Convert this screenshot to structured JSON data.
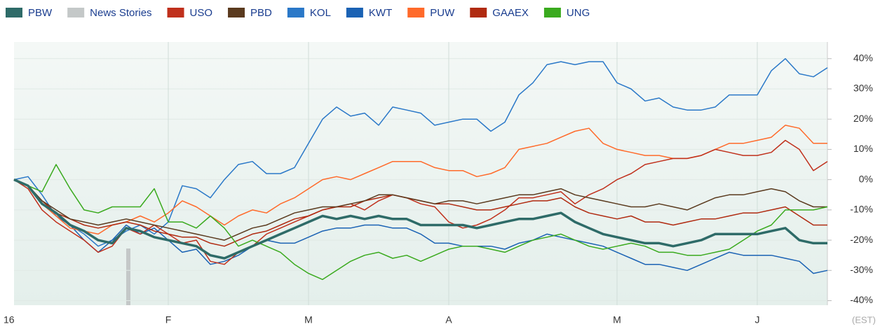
{
  "chart_data": {
    "type": "line",
    "categories": [
      "16",
      null,
      null,
      null,
      null,
      null,
      null,
      null,
      null,
      null,
      null,
      "F",
      null,
      null,
      null,
      null,
      null,
      null,
      null,
      null,
      null,
      "M",
      null,
      null,
      null,
      null,
      null,
      null,
      null,
      null,
      null,
      "A",
      null,
      null,
      null,
      null,
      null,
      null,
      null,
      null,
      null,
      null,
      null,
      "M",
      null,
      null,
      null,
      null,
      null,
      null,
      null,
      null,
      null,
      "J",
      null,
      null,
      null,
      null,
      null
    ],
    "x_note_label": "(EST)",
    "ylim": [
      -41.5,
      45.5
    ],
    "yticks": [
      {
        "value": 40,
        "label": "40%"
      },
      {
        "value": 30,
        "label": "30%"
      },
      {
        "value": 20,
        "label": "20%"
      },
      {
        "value": 10,
        "label": "10%"
      },
      {
        "value": 0,
        "label": "0%"
      },
      {
        "value": -10,
        "label": "-10%"
      },
      {
        "value": -20,
        "label": "-20%"
      },
      {
        "value": -30,
        "label": "-30%"
      },
      {
        "value": -40,
        "label": "-40%"
      }
    ],
    "grid": true,
    "legend_items": [
      {
        "name": "News Stories",
        "color": "#c4c8c8"
      }
    ],
    "series": [
      {
        "name": "PBW",
        "color": "#2e6b68",
        "values": [
          0,
          -2,
          -8,
          -11,
          -15,
          -17,
          -20,
          -21,
          -16,
          -17,
          -19,
          -20,
          -21,
          -22,
          -25,
          -26,
          -24,
          -22,
          -20,
          -18,
          -16,
          -14,
          -12,
          -13,
          -12,
          -13,
          -12,
          -13,
          -13,
          -15,
          -15,
          -15,
          -15,
          -16,
          -15,
          -14,
          -13,
          -13,
          -12,
          -11,
          -14,
          -16,
          -18,
          -19,
          -20,
          -21,
          -21,
          -22,
          -21,
          -20,
          -18,
          -18,
          -18,
          -18,
          -17,
          -16,
          -20,
          -21,
          -21
        ]
      },
      {
        "name": "USO",
        "color": "#c0301c",
        "values": [
          0,
          -3,
          -10,
          -14,
          -17,
          -20,
          -24,
          -22,
          -16,
          -18,
          -15,
          -18,
          -21,
          -20,
          -27,
          -28,
          -24,
          -22,
          -18,
          -16,
          -14,
          -12,
          -10,
          -9,
          -8,
          -10,
          -7,
          -5,
          -6,
          -8,
          -9,
          -14,
          -16,
          -15,
          -13,
          -10,
          -6,
          -6,
          -5,
          -4,
          -8,
          -5,
          -3,
          0,
          2,
          5,
          6,
          7,
          7,
          8,
          10,
          9,
          8,
          8,
          9,
          13,
          10,
          3,
          6
        ]
      },
      {
        "name": "PBD",
        "color": "#5a3a1e",
        "values": [
          0,
          -2,
          -7,
          -10,
          -13,
          -14,
          -15,
          -14,
          -13,
          -14,
          -15,
          -16,
          -17,
          -18,
          -19,
          -20,
          -18,
          -16,
          -15,
          -13,
          -11,
          -10,
          -9,
          -9,
          -8,
          -7,
          -5,
          -5,
          -6,
          -7,
          -8,
          -7,
          -7,
          -8,
          -7,
          -6,
          -5,
          -5,
          -4,
          -3,
          -5,
          -6,
          -7,
          -8,
          -9,
          -9,
          -8,
          -9,
          -10,
          -8,
          -6,
          -5,
          -5,
          -4,
          -3,
          -4,
          -7,
          -9,
          -9
        ]
      },
      {
        "name": "KOL",
        "color": "#2a78c8",
        "values": [
          0,
          1,
          -5,
          -12,
          -15,
          -18,
          -22,
          -20,
          -17,
          -15,
          -18,
          -14,
          -2,
          -3,
          -6,
          0,
          5,
          6,
          2,
          2,
          4,
          12,
          20,
          24,
          21,
          22,
          18,
          24,
          23,
          22,
          18,
          19,
          20,
          20,
          16,
          19,
          28,
          32,
          38,
          39,
          38,
          39,
          39,
          32,
          30,
          26,
          27,
          24,
          23,
          23,
          24,
          28,
          28,
          28,
          36,
          40,
          35,
          34,
          37
        ]
      },
      {
        "name": "KWT",
        "color": "#1a62b4",
        "values": [
          0,
          -2,
          -8,
          -12,
          -15,
          -20,
          -24,
          -20,
          -15,
          -18,
          -16,
          -20,
          -24,
          -23,
          -28,
          -27,
          -25,
          -22,
          -20,
          -21,
          -21,
          -19,
          -17,
          -16,
          -16,
          -15,
          -15,
          -16,
          -16,
          -18,
          -21,
          -21,
          -22,
          -22,
          -22,
          -23,
          -21,
          -20,
          -18,
          -19,
          -20,
          -21,
          -22,
          -24,
          -26,
          -28,
          -28,
          -29,
          -30,
          -28,
          -26,
          -24,
          -25,
          -25,
          -25,
          -26,
          -27,
          -31,
          -30
        ]
      },
      {
        "name": "PUW",
        "color": "#ff6a2a",
        "values": [
          0,
          -2,
          -8,
          -12,
          -16,
          -17,
          -18,
          -15,
          -14,
          -12,
          -14,
          -11,
          -7,
          -9,
          -12,
          -15,
          -12,
          -10,
          -11,
          -8,
          -6,
          -3,
          0,
          1,
          0,
          2,
          4,
          6,
          6,
          6,
          4,
          3,
          3,
          1,
          2,
          4,
          10,
          11,
          12,
          14,
          16,
          17,
          12,
          10,
          9,
          8,
          8,
          7,
          7,
          8,
          10,
          12,
          12,
          13,
          14,
          18,
          17,
          12,
          12
        ]
      },
      {
        "name": "GAAEX",
        "color": "#b02a10",
        "values": [
          0,
          -2,
          -7,
          -11,
          -13,
          -15,
          -16,
          -15,
          -14,
          -15,
          -17,
          -18,
          -19,
          -19,
          -21,
          -22,
          -20,
          -18,
          -17,
          -15,
          -13,
          -12,
          -10,
          -9,
          -9,
          -7,
          -6,
          -5,
          -6,
          -7,
          -8,
          -8,
          -9,
          -10,
          -10,
          -9,
          -8,
          -7,
          -7,
          -6,
          -9,
          -11,
          -12,
          -13,
          -12,
          -14,
          -14,
          -15,
          -14,
          -13,
          -13,
          -12,
          -11,
          -11,
          -10,
          -9,
          -12,
          -15,
          -15
        ]
      },
      {
        "name": "UNG",
        "color": "#3aaa1e",
        "values": [
          0,
          -2,
          -4,
          5,
          -3,
          -10,
          -11,
          -9,
          -9,
          -9,
          -3,
          -14,
          -14,
          -16,
          -12,
          -16,
          -22,
          -20,
          -22,
          -24,
          -28,
          -31,
          -33,
          -30,
          -27,
          -25,
          -24,
          -26,
          -25,
          -27,
          -25,
          -23,
          -22,
          -22,
          -23,
          -24,
          -22,
          -20,
          -19,
          -18,
          -20,
          -22,
          -23,
          -22,
          -21,
          -22,
          -24,
          -24,
          -25,
          -25,
          -24,
          -23,
          -20,
          -17,
          -15,
          -10,
          -10,
          -10,
          -9
        ]
      }
    ]
  }
}
